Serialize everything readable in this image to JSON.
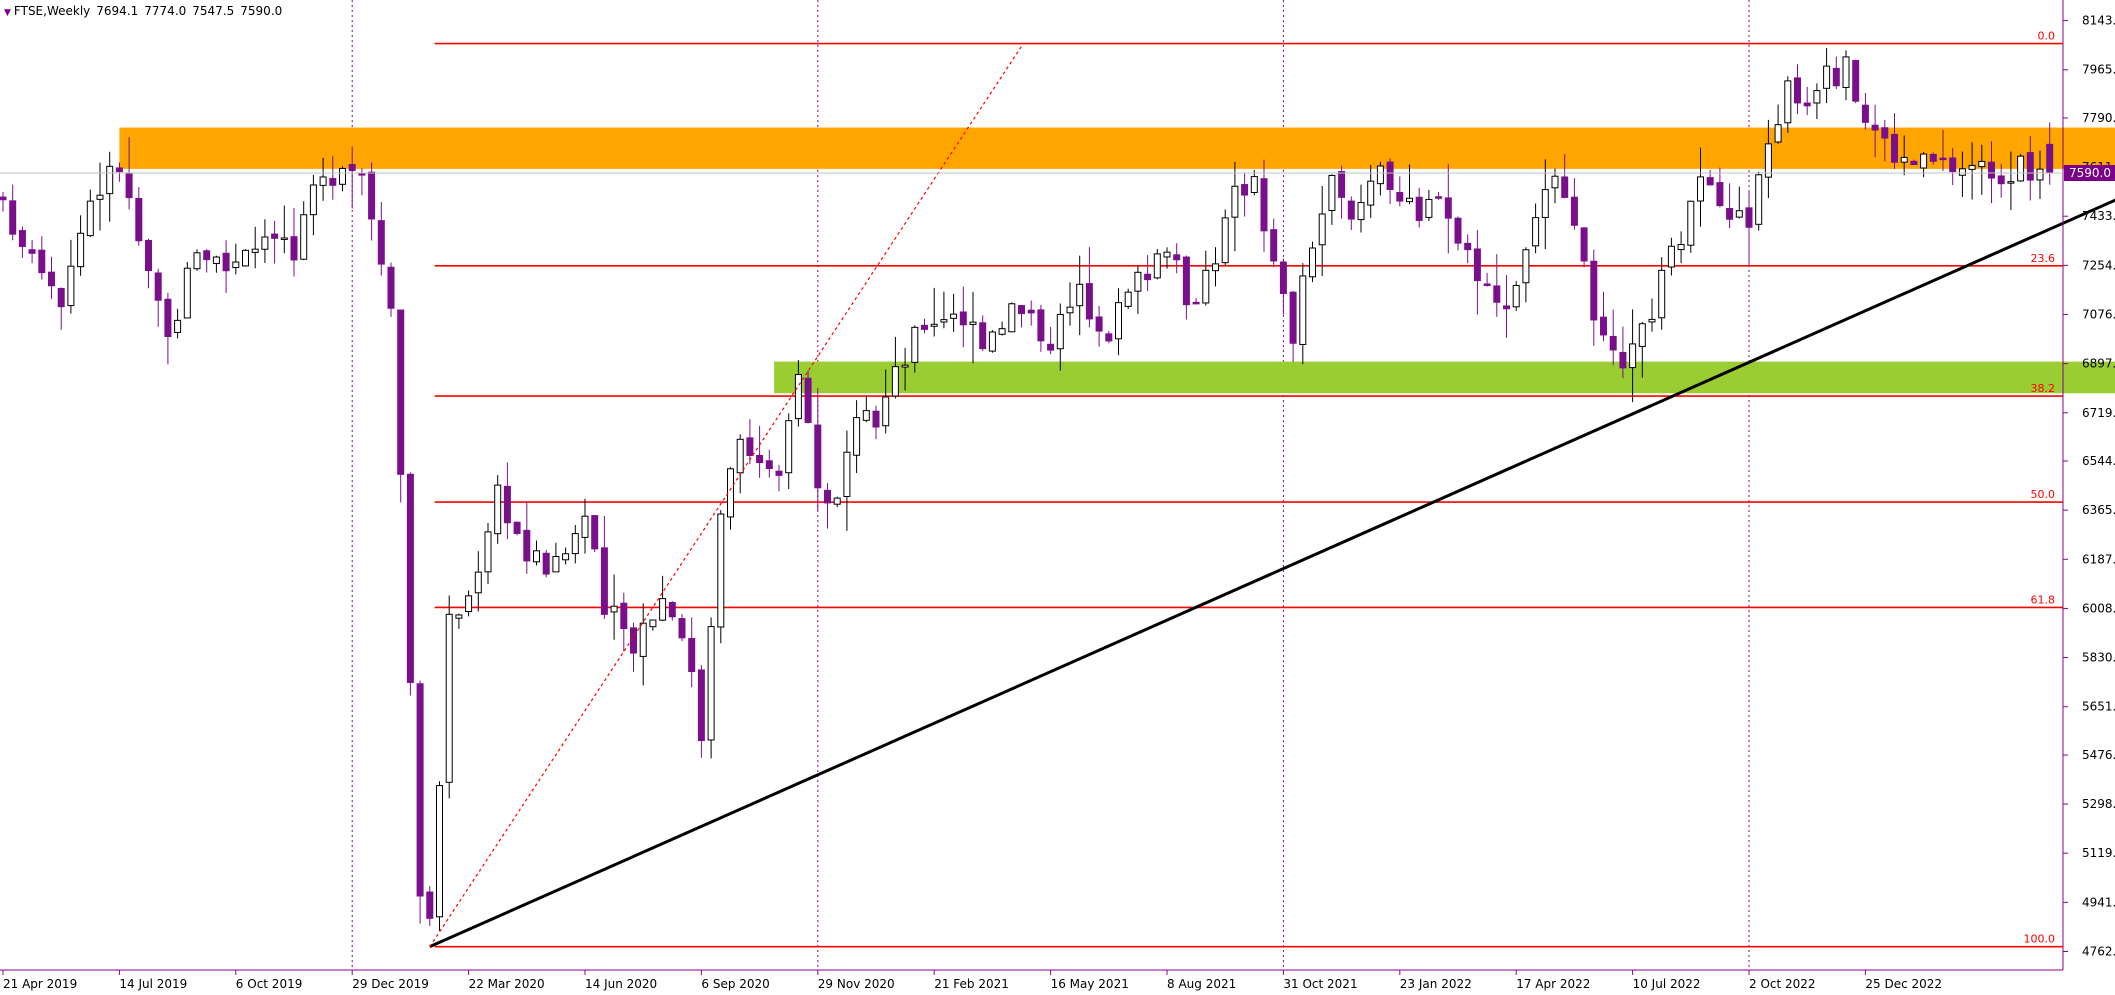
{
  "header": {
    "symbol_timeframe": "FTSE,Weekly",
    "open": "7694.1",
    "high": "7774.0",
    "low": "7547.5",
    "close": "7590.0"
  },
  "colors": {
    "bull_body": "#ffffff",
    "bear_body": "#7a0f8c",
    "wick": "#000000",
    "fib_line": "#ff0000",
    "resistance_zone": "#ffa500",
    "support_zone": "#9acd32",
    "trendline": "#000000",
    "grid_vertical": "#8b008b",
    "axis": "#8b008b",
    "price_tag": "#7a008a"
  },
  "chart_data": {
    "type": "candlestick",
    "symbol": "FTSE",
    "timeframe": "Weekly",
    "y_axis_ticks": [
      "8143.5",
      "7965.0",
      "7790.0",
      "7611.5",
      "7433.0",
      "7254.5",
      "7076.0",
      "6897.5",
      "6719.0",
      "6544.0",
      "6365.5",
      "6187.0",
      "6008.5",
      "5830.0",
      "5651.5",
      "5476.0",
      "5298.0",
      "5119.5",
      "4941.0",
      "4762.5"
    ],
    "ylim": [
      4700,
      8200
    ],
    "x_axis_labels": [
      {
        "label": "21 Apr 2019",
        "week": 0
      },
      {
        "label": "14 Jul 2019",
        "week": 12
      },
      {
        "label": "6 Oct 2019",
        "week": 24
      },
      {
        "label": "29 Dec 2019",
        "week": 36
      },
      {
        "label": "22 Mar 2020",
        "week": 48
      },
      {
        "label": "14 Jun 2020",
        "week": 60
      },
      {
        "label": "6 Sep 2020",
        "week": 72
      },
      {
        "label": "29 Nov 2020",
        "week": 84
      },
      {
        "label": "21 Feb 2021",
        "week": 96
      },
      {
        "label": "16 May 2021",
        "week": 108
      },
      {
        "label": "8 Aug 2021",
        "week": 120
      },
      {
        "label": "31 Oct 2021",
        "week": 132
      },
      {
        "label": "23 Jan 2022",
        "week": 144
      },
      {
        "label": "17 Apr 2022",
        "week": 156
      },
      {
        "label": "10 Jul 2022",
        "week": 168
      },
      {
        "label": "2 Oct 2022",
        "week": 180
      },
      {
        "label": "25 Dec 2022",
        "week": 192
      }
    ],
    "vertical_separators": [
      36,
      84,
      132,
      180,
      229
    ],
    "last_week": 211,
    "current_price": "7590.0",
    "fibonacci": [
      {
        "level": "0.0",
        "price": 8060
      },
      {
        "level": "23.6",
        "price": 7253
      },
      {
        "level": "38.2",
        "price": 6780
      },
      {
        "level": "50.0",
        "price": 6395
      },
      {
        "level": "61.8",
        "price": 6012
      },
      {
        "level": "100.0",
        "price": 4780
      }
    ],
    "fib_start_week": 44.5,
    "zones": [
      {
        "name": "resistance",
        "from": 7605,
        "to": 7755,
        "start_week": 12,
        "end_week": 235
      },
      {
        "name": "support",
        "from": 6790,
        "to": 6905,
        "start_week": 79.5,
        "end_week": 235
      }
    ],
    "trendline": {
      "from": {
        "week": 44,
        "price": 4780
      },
      "to": {
        "week": 234,
        "price": 7745
      }
    },
    "projection_line": {
      "from": {
        "week": 44,
        "price": 4780
      },
      "to": {
        "week": 105,
        "price": 8050
      }
    },
    "anchors": [
      [
        0,
        7450
      ],
      [
        4,
        7280
      ],
      [
        6,
        7150
      ],
      [
        9,
        7500
      ],
      [
        12,
        7620
      ],
      [
        15,
        7200
      ],
      [
        17,
        6980
      ],
      [
        20,
        7330
      ],
      [
        23,
        7250
      ],
      [
        25,
        7330
      ],
      [
        28,
        7400
      ],
      [
        30,
        7280
      ],
      [
        32,
        7500
      ],
      [
        35,
        7650
      ],
      [
        37,
        7600
      ],
      [
        40,
        7150
      ],
      [
        41,
        6500
      ],
      [
        43,
        5000
      ],
      [
        44,
        4850
      ],
      [
        46,
        5950
      ],
      [
        48,
        6050
      ],
      [
        51,
        6450
      ],
      [
        54,
        6200
      ],
      [
        57,
        6150
      ],
      [
        60,
        6350
      ],
      [
        62,
        6000
      ],
      [
        65,
        5900
      ],
      [
        68,
        6050
      ],
      [
        70,
        5950
      ],
      [
        72,
        5550
      ],
      [
        74,
        6400
      ],
      [
        76,
        6600
      ],
      [
        78,
        6550
      ],
      [
        80,
        6450
      ],
      [
        82,
        6900
      ],
      [
        84,
        6450
      ],
      [
        86,
        6400
      ],
      [
        88,
        6650
      ],
      [
        90,
        6700
      ],
      [
        92,
        6850
      ],
      [
        95,
        7050
      ],
      [
        98,
        7100
      ],
      [
        101,
        7000
      ],
      [
        104,
        7100
      ],
      [
        108,
        7000
      ],
      [
        111,
        7150
      ],
      [
        114,
        7030
      ],
      [
        117,
        7200
      ],
      [
        120,
        7350
      ],
      [
        122,
        7100
      ],
      [
        125,
        7300
      ],
      [
        127,
        7500
      ],
      [
        129,
        7600
      ],
      [
        131,
        7250
      ],
      [
        133,
        7000
      ],
      [
        135,
        7350
      ],
      [
        137,
        7550
      ],
      [
        139,
        7400
      ],
      [
        142,
        7650
      ],
      [
        144,
        7500
      ],
      [
        146,
        7400
      ],
      [
        148,
        7550
      ],
      [
        150,
        7350
      ],
      [
        152,
        7250
      ],
      [
        154,
        7100
      ],
      [
        156,
        7200
      ],
      [
        158,
        7450
      ],
      [
        160,
        7550
      ],
      [
        162,
        7350
      ],
      [
        164,
        7100
      ],
      [
        165,
        6950
      ],
      [
        167,
        6850
      ],
      [
        169,
        7000
      ],
      [
        171,
        7200
      ],
      [
        174,
        7450
      ],
      [
        176,
        7600
      ],
      [
        178,
        7450
      ],
      [
        180,
        7400
      ],
      [
        182,
        7700
      ],
      [
        184,
        7900
      ],
      [
        186,
        7850
      ],
      [
        188,
        8020
      ],
      [
        189,
        7960
      ],
      [
        190,
        7960
      ],
      [
        192,
        7800
      ],
      [
        194,
        7700
      ],
      [
        196,
        7630
      ],
      [
        197,
        7625
      ],
      [
        211,
        7590
      ]
    ],
    "ohlc_note": "Approximate weekly OHLC path; candles are generated from the anchor closes by the drawing script."
  }
}
